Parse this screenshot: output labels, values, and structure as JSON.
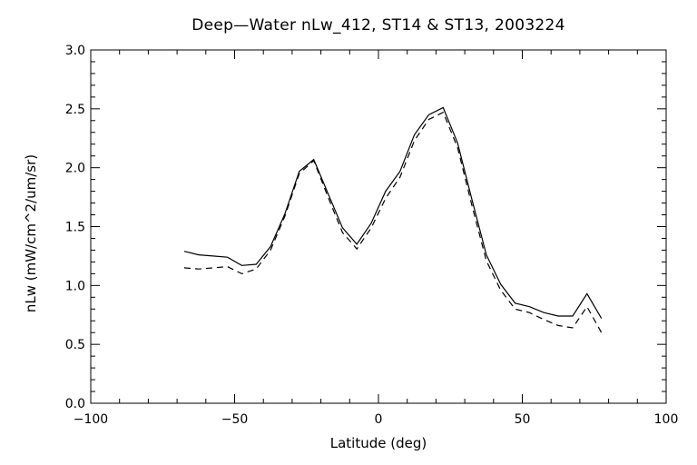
{
  "chart_data": {
    "type": "line",
    "title": "Deep—Water nLw_412, ST14 & ST13, 2003224",
    "xlabel": "Latitude (deg)",
    "ylabel": "nLw (mW/cm^2/um/sr)",
    "xlim": [
      -100,
      100
    ],
    "ylim": [
      0.0,
      3.0
    ],
    "xticks": [
      "−100",
      "−50",
      "0",
      "50",
      "100"
    ],
    "xtick_values": [
      -100,
      -50,
      0,
      50,
      100
    ],
    "yticks": [
      "0.0",
      "0.5",
      "1.0",
      "1.5",
      "2.0",
      "2.5",
      "3.0"
    ],
    "ytick_values": [
      0.0,
      0.5,
      1.0,
      1.5,
      2.0,
      2.5,
      3.0
    ],
    "grid": false,
    "series": [
      {
        "style": "solid",
        "color": "#000000",
        "x": [
          -67.5,
          -62.5,
          -57.5,
          -52.5,
          -47.5,
          -42.5,
          -37.5,
          -32.5,
          -27.5,
          -22.5,
          -17.5,
          -12.5,
          -7.5,
          -2.5,
          2.5,
          7.5,
          12.5,
          17.5,
          22.5,
          27.5,
          32.5,
          37.5,
          42.5,
          47.5,
          52.5,
          57.5,
          62.5,
          67.5,
          72.5,
          77.5
        ],
        "y": [
          1.29,
          1.26,
          1.25,
          1.24,
          1.17,
          1.18,
          1.33,
          1.61,
          1.97,
          2.07,
          1.78,
          1.49,
          1.35,
          1.53,
          1.8,
          1.97,
          2.28,
          2.45,
          2.51,
          2.21,
          1.73,
          1.26,
          1.01,
          0.85,
          0.82,
          0.77,
          0.74,
          0.74,
          0.93,
          0.72
        ]
      },
      {
        "style": "dashed",
        "color": "#000000",
        "x": [
          -67.5,
          -62.5,
          -57.5,
          -52.5,
          -47.5,
          -42.5,
          -37.5,
          -32.5,
          -27.5,
          -22.5,
          -17.5,
          -12.5,
          -7.5,
          -2.5,
          2.5,
          7.5,
          12.5,
          17.5,
          22.5,
          27.5,
          32.5,
          37.5,
          42.5,
          47.5,
          52.5,
          57.5,
          62.5,
          67.5,
          72.5,
          77.5
        ],
        "y": [
          1.15,
          1.14,
          1.15,
          1.16,
          1.1,
          1.14,
          1.3,
          1.59,
          1.95,
          2.06,
          1.75,
          1.45,
          1.31,
          1.49,
          1.74,
          1.92,
          2.23,
          2.41,
          2.47,
          2.17,
          1.68,
          1.21,
          0.96,
          0.8,
          0.77,
          0.71,
          0.66,
          0.64,
          0.82,
          0.6
        ]
      }
    ]
  }
}
